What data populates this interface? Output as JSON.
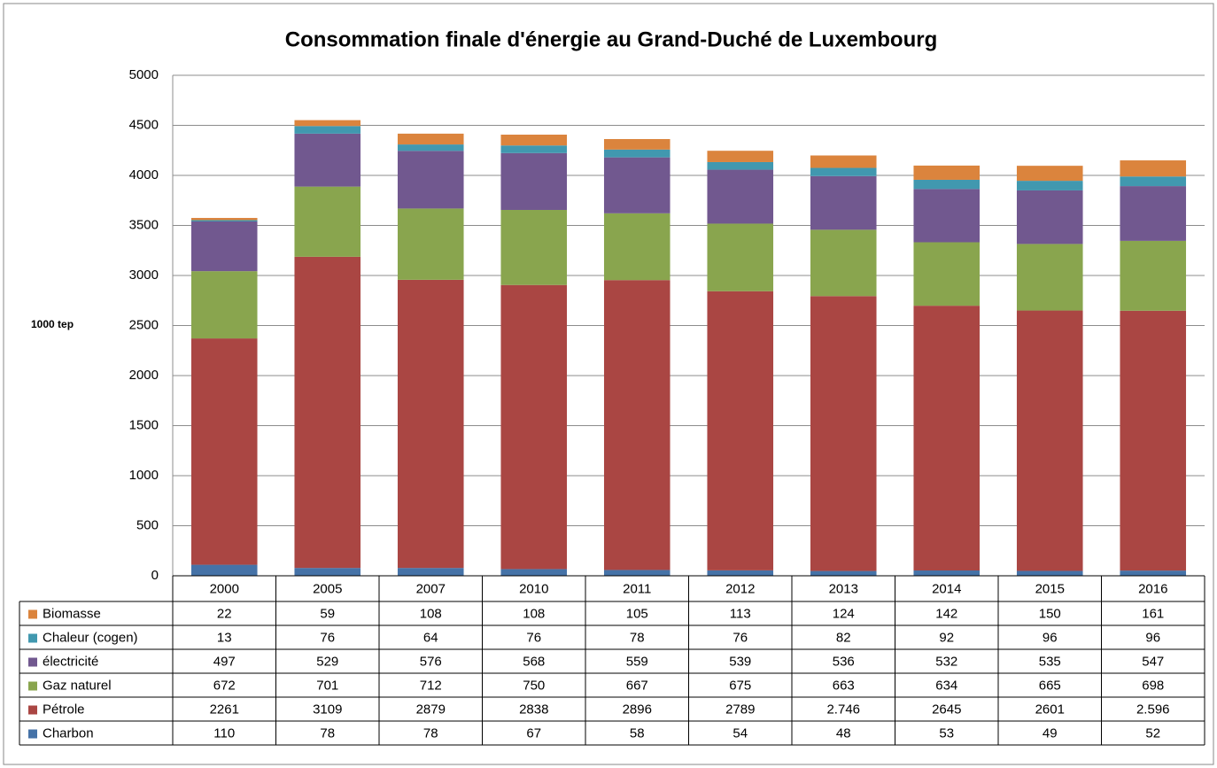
{
  "chart_data": {
    "type": "stacked-bar",
    "title": "Consommation finale d'énergie au Grand-Duché de Luxembourg",
    "y_label": "1000 tep",
    "categories": [
      "2000",
      "2005",
      "2007",
      "2010",
      "2011",
      "2012",
      "2013",
      "2014",
      "2015",
      "2016"
    ],
    "series": [
      {
        "name": "Charbon",
        "color": "#4572a7",
        "values": [
          110,
          78,
          78,
          67,
          58,
          54,
          48,
          53,
          49,
          52
        ]
      },
      {
        "name": "Pétrole",
        "color": "#aa4643",
        "values": [
          2261,
          3109,
          2879,
          2838,
          2896,
          2789,
          2746,
          2645,
          2601,
          2596
        ],
        "value_labels": [
          "2261",
          "3109",
          "2879",
          "2838",
          "2896",
          "2789",
          "2.746",
          "2645",
          "2601",
          "2.596"
        ]
      },
      {
        "name": "Gaz naturel",
        "color": "#89a54e",
        "values": [
          672,
          701,
          712,
          750,
          667,
          675,
          663,
          634,
          665,
          698
        ]
      },
      {
        "name": "électricité",
        "color": "#71588f",
        "values": [
          497,
          529,
          576,
          568,
          559,
          539,
          536,
          532,
          535,
          547
        ]
      },
      {
        "name": "Chaleur (cogen)",
        "color": "#4198af",
        "values": [
          13,
          76,
          64,
          76,
          78,
          76,
          82,
          92,
          96,
          96
        ]
      },
      {
        "name": "Biomasse",
        "color": "#db843d",
        "values": [
          22,
          59,
          108,
          108,
          105,
          113,
          124,
          142,
          150,
          161
        ]
      }
    ],
    "ylim": [
      0,
      5000
    ],
    "yticks": [
      0,
      500,
      1000,
      1500,
      2000,
      2500,
      3000,
      3500,
      4000,
      4500,
      5000
    ],
    "grid": true
  }
}
